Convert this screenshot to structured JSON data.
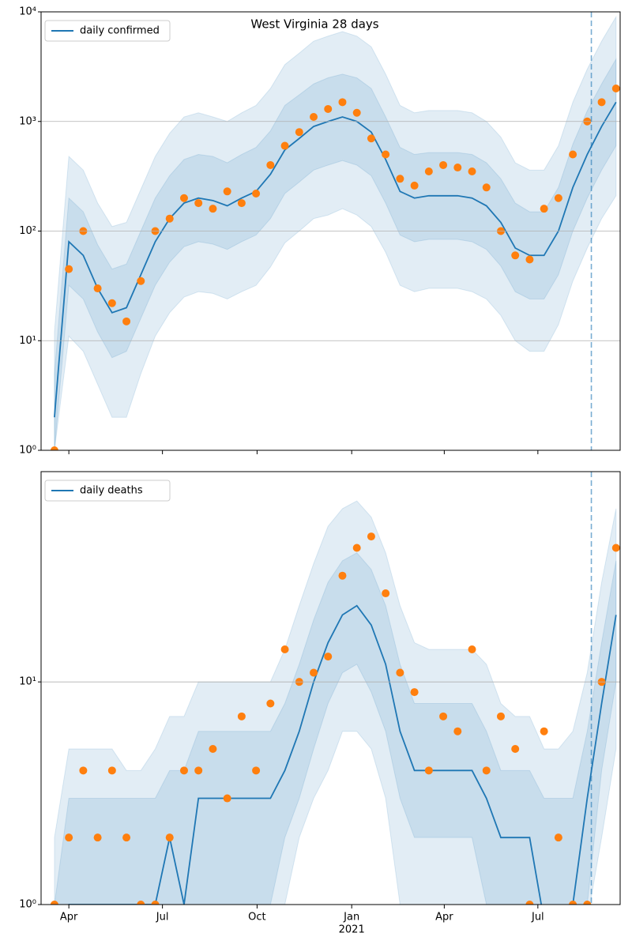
{
  "chart_data": [
    {
      "type": "line",
      "title": "West Virginia 28 days",
      "log": true,
      "grid": true,
      "legend": "upper left",
      "xlim": [
        64,
        627
      ],
      "ylim": [
        1,
        10000
      ],
      "xticks": [
        91,
        182,
        274,
        366,
        456,
        547
      ],
      "yticks": [
        {
          "value": 1,
          "label": "10⁰"
        },
        {
          "value": 10,
          "label": "10¹"
        },
        {
          "value": 100,
          "label": "10²"
        },
        {
          "value": 1000,
          "label": "10³"
        },
        {
          "value": 10000,
          "label": "10⁴"
        }
      ],
      "vline": 599,
      "x": [
        77,
        91,
        105,
        119,
        133,
        147,
        161,
        175,
        189,
        203,
        217,
        231,
        245,
        259,
        273,
        287,
        301,
        315,
        329,
        343,
        357,
        371,
        385,
        399,
        413,
        427,
        441,
        455,
        469,
        483,
        497,
        511,
        525,
        539,
        553,
        567,
        581,
        595,
        609,
        623
      ],
      "bands": [
        {
          "color": "#1f77b4",
          "lower": [
            1,
            11,
            8,
            4,
            2,
            2,
            5,
            11,
            18,
            25,
            28,
            27,
            24,
            28,
            32,
            47,
            78,
            100,
            130,
            140,
            160,
            140,
            110,
            64,
            32,
            28,
            30,
            30,
            30,
            28,
            24,
            17,
            10,
            8,
            8,
            14,
            35,
            70,
            130,
            210
          ],
          "upper": [
            12,
            480,
            360,
            180,
            110,
            120,
            240,
            480,
            780,
            1100,
            1200,
            1100,
            1000,
            1200,
            1400,
            2000,
            3300,
            4200,
            5400,
            6000,
            6600,
            6000,
            4800,
            2700,
            1400,
            1200,
            1260,
            1260,
            1260,
            1200,
            1000,
            720,
            420,
            360,
            360,
            600,
            1500,
            3000,
            5400,
            9000
          ]
        },
        {
          "color": "#1f77b4",
          "lower": [
            1,
            32,
            24,
            12,
            7,
            8,
            16,
            32,
            52,
            72,
            80,
            76,
            68,
            80,
            92,
            130,
            220,
            280,
            360,
            400,
            440,
            400,
            320,
            180,
            92,
            80,
            84,
            84,
            84,
            80,
            68,
            48,
            28,
            24,
            24,
            40,
            100,
            200,
            360,
            600
          ],
          "upper": [
            5,
            200,
            150,
            75,
            45,
            50,
            100,
            200,
            320,
            450,
            500,
            480,
            420,
            500,
            580,
            820,
            1400,
            1750,
            2200,
            2500,
            2700,
            2500,
            2000,
            1100,
            580,
            500,
            520,
            520,
            520,
            500,
            420,
            300,
            180,
            150,
            150,
            250,
            620,
            1250,
            2200,
            3700
          ]
        }
      ],
      "series": [
        {
          "name": "daily confirmed",
          "color": "#1f77b4",
          "values": [
            2,
            80,
            60,
            30,
            18,
            20,
            40,
            80,
            130,
            180,
            200,
            190,
            170,
            200,
            230,
            330,
            550,
            700,
            900,
            1000,
            1100,
            1000,
            800,
            450,
            230,
            200,
            210,
            210,
            210,
            200,
            170,
            120,
            70,
            60,
            60,
            100,
            250,
            500,
            900,
            1500
          ]
        }
      ],
      "points": {
        "color": "#ff7f0e",
        "values": [
          1,
          45,
          100,
          30,
          22,
          15,
          35,
          100,
          130,
          200,
          180,
          160,
          230,
          180,
          220,
          400,
          600,
          800,
          1100,
          1300,
          1500,
          1200,
          700,
          500,
          300,
          260,
          350,
          400,
          380,
          350,
          250,
          100,
          60,
          55,
          160,
          200,
          500,
          1000,
          1500,
          2000
        ]
      }
    },
    {
      "type": "line",
      "log": true,
      "grid": true,
      "legend": "upper left",
      "xlim": [
        64,
        627
      ],
      "ylim": [
        1,
        88
      ],
      "xticks": [
        {
          "value": 91,
          "label": "Apr"
        },
        {
          "value": 182,
          "label": "Jul"
        },
        {
          "value": 274,
          "label": "Oct"
        },
        {
          "value": 366,
          "label": "Jan"
        },
        {
          "value": 456,
          "label": "Apr"
        },
        {
          "value": 547,
          "label": "Jul"
        }
      ],
      "year_label": {
        "value": 366,
        "label": "2021"
      },
      "yticks": [
        {
          "value": 1,
          "label": "10⁰"
        },
        {
          "value": 10,
          "label": "10¹"
        }
      ],
      "vline": 599,
      "x": [
        77,
        91,
        105,
        119,
        133,
        147,
        161,
        175,
        189,
        203,
        217,
        231,
        245,
        259,
        273,
        287,
        301,
        315,
        329,
        343,
        357,
        371,
        385,
        399,
        413,
        427,
        441,
        455,
        469,
        483,
        497,
        511,
        525,
        539,
        553,
        567,
        581,
        595,
        609,
        623
      ],
      "bands": [
        {
          "color": "#1f77b4",
          "lower": [
            0,
            0,
            0,
            0,
            0,
            0,
            0,
            0,
            0,
            0,
            1,
            1,
            1,
            1,
            1,
            1,
            1,
            2,
            3,
            4,
            6,
            6,
            5,
            3,
            1,
            1,
            1,
            1,
            1,
            1,
            1,
            0,
            0,
            0,
            0,
            0,
            0,
            0,
            2,
            5
          ],
          "upper": [
            2,
            5,
            5,
            5,
            5,
            4,
            4,
            5,
            7,
            7,
            10,
            10,
            10,
            10,
            10,
            10,
            14,
            22,
            34,
            50,
            60,
            65,
            55,
            38,
            22,
            15,
            14,
            14,
            14,
            14,
            12,
            8,
            7,
            7,
            5,
            5,
            6,
            11,
            28,
            60
          ]
        },
        {
          "color": "#1f77b4",
          "lower": [
            0,
            0,
            0,
            0,
            0,
            0,
            0,
            0,
            1,
            1,
            1,
            1,
            1,
            1,
            1,
            1,
            2,
            3,
            5,
            8,
            11,
            12,
            9,
            6,
            3,
            2,
            2,
            2,
            2,
            2,
            1,
            1,
            1,
            1,
            0,
            0,
            0,
            1,
            4,
            10
          ],
          "upper": [
            1,
            3,
            3,
            3,
            3,
            3,
            3,
            3,
            4,
            4,
            6,
            6,
            6,
            6,
            6,
            6,
            8,
            12,
            19,
            28,
            35,
            38,
            32,
            22,
            12,
            8,
            8,
            8,
            8,
            8,
            6,
            4,
            4,
            4,
            3,
            3,
            3,
            6,
            15,
            35
          ]
        }
      ],
      "series": [
        {
          "name": "daily deaths",
          "color": "#1f77b4",
          "values": [
            0,
            1,
            1,
            1,
            1,
            1,
            1,
            1,
            2,
            1,
            3,
            3,
            3,
            3,
            3,
            3,
            4,
            6,
            10,
            15,
            20,
            22,
            18,
            12,
            6,
            4,
            4,
            4,
            4,
            4,
            3,
            2,
            2,
            2,
            0,
            0,
            1,
            3,
            8,
            20
          ]
        }
      ],
      "points": {
        "color": "#ff7f0e",
        "values": [
          1,
          2,
          4,
          2,
          4,
          2,
          1,
          1,
          2,
          4,
          4,
          5,
          3,
          7,
          4,
          8,
          14,
          10,
          11,
          13,
          30,
          40,
          45,
          25,
          11,
          9,
          4,
          7,
          6,
          14,
          4,
          7,
          5,
          1,
          6,
          2,
          1,
          1,
          10,
          40
        ]
      }
    }
  ]
}
